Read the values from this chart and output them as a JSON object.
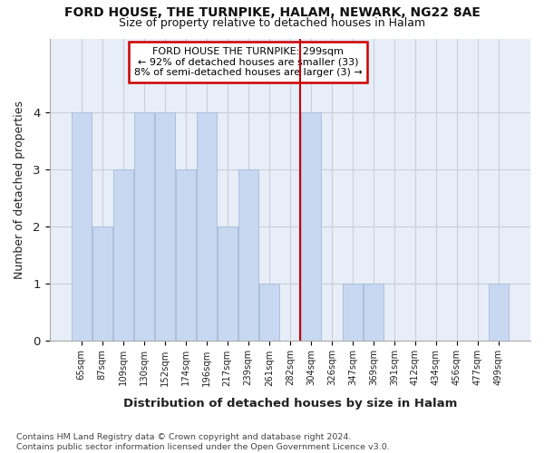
{
  "title1": "FORD HOUSE, THE TURNPIKE, HALAM, NEWARK, NG22 8AE",
  "title2": "Size of property relative to detached houses in Halam",
  "xlabel": "Distribution of detached houses by size in Halam",
  "ylabel": "Number of detached properties",
  "footer": "Contains HM Land Registry data © Crown copyright and database right 2024.\nContains public sector information licensed under the Open Government Licence v3.0.",
  "categories": [
    "65sqm",
    "87sqm",
    "109sqm",
    "130sqm",
    "152sqm",
    "174sqm",
    "196sqm",
    "217sqm",
    "239sqm",
    "261sqm",
    "282sqm",
    "304sqm",
    "326sqm",
    "347sqm",
    "369sqm",
    "391sqm",
    "412sqm",
    "434sqm",
    "456sqm",
    "477sqm",
    "499sqm"
  ],
  "values": [
    4,
    2,
    3,
    4,
    4,
    3,
    4,
    2,
    3,
    1,
    0,
    4,
    0,
    1,
    1,
    0,
    0,
    0,
    0,
    0,
    1
  ],
  "bar_color": "#c8d8f0",
  "bar_edge_color": "#aabfdd",
  "vline_x": 11,
  "annotation_text": "FORD HOUSE THE TURNPIKE: 299sqm\n← 92% of detached houses are smaller (33)\n8% of semi-detached houses are larger (3) →",
  "annotation_box_color": "#ffffff",
  "annotation_box_edge": "#cc0000",
  "vline_color": "#cc0000",
  "ylim": [
    0,
    5.3
  ],
  "yticks": [
    0,
    1,
    2,
    3,
    4
  ],
  "ytick_labels": [
    "0",
    "1",
    "2",
    "3",
    "4"
  ],
  "background_color": "#ffffff",
  "plot_background": "#e8eef8"
}
